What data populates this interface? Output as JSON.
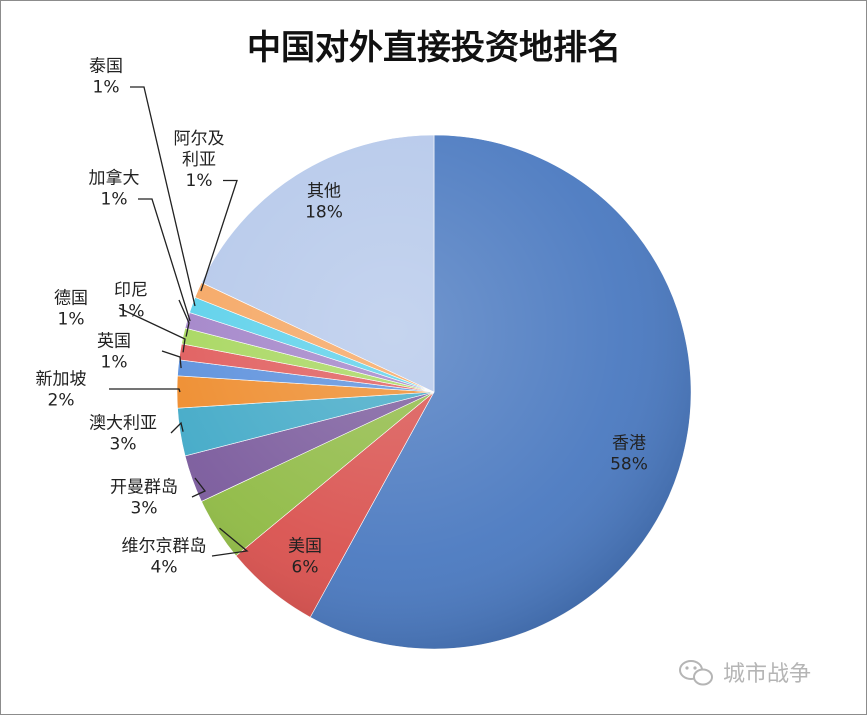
{
  "chart_data": {
    "type": "pie",
    "title": "中国对外直接投资地排名",
    "unit": "%",
    "slices": [
      {
        "label": "香港",
        "value": 58,
        "color": "#4a79c0"
      },
      {
        "label": "美国",
        "value": 6,
        "color": "#d9514e"
      },
      {
        "label": "维尔京群岛",
        "value": 4,
        "color": "#8fba44"
      },
      {
        "label": "开曼群岛",
        "value": 3,
        "color": "#7a5a9c"
      },
      {
        "label": "澳大利亚",
        "value": 3,
        "color": "#41a9c7"
      },
      {
        "label": "新加坡",
        "value": 2,
        "color": "#ee8b2b"
      },
      {
        "label": "英国",
        "value": 1,
        "color": "#5a8fdc"
      },
      {
        "label": "德国",
        "value": 1,
        "color": "#e05a5a"
      },
      {
        "label": "印尼",
        "value": 1,
        "color": "#a6d65c"
      },
      {
        "label": "加拿大",
        "value": 1,
        "color": "#a182c8"
      },
      {
        "label": "泰国",
        "value": 1,
        "color": "#5ad0ea"
      },
      {
        "label": "阿尔及\n利亚",
        "value": 1,
        "color": "#f5a560"
      },
      {
        "label": "其他",
        "value": 18,
        "color": "#b5c8ea"
      }
    ],
    "grid": false,
    "legend": "none"
  },
  "watermark": {
    "icon": "wechat-icon",
    "text": "城市战争"
  }
}
